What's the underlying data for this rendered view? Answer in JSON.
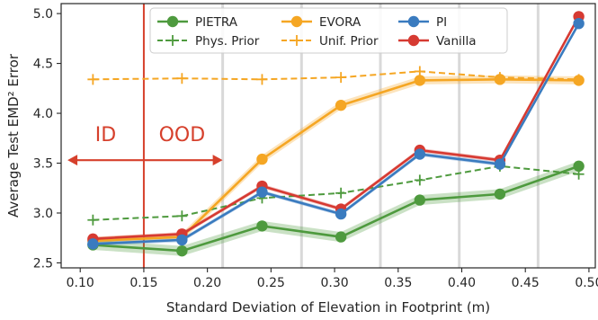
{
  "chart_data": {
    "type": "line",
    "title": "",
    "xlabel": "Standard Deviation of Elevation in Footprint (m)",
    "ylabel": "Average Test EMD² Error",
    "xlim": [
      0.085,
      0.505
    ],
    "ylim": [
      2.45,
      5.1
    ],
    "x_ticks": [
      0.1,
      0.15,
      0.2,
      0.25,
      0.3,
      0.35,
      0.4,
      0.45,
      0.5
    ],
    "x_tick_labels": [
      "0.10",
      "0.15",
      "0.20",
      "0.25",
      "0.30",
      "0.35",
      "0.40",
      "0.45",
      "0.50"
    ],
    "y_ticks": [
      2.5,
      3.0,
      3.5,
      4.0,
      4.5,
      5.0
    ],
    "y_tick_labels": [
      "2.5",
      "3.0",
      "3.5",
      "4.0",
      "4.5",
      "5.0"
    ],
    "grid": false,
    "gray_vlines": [
      0.212,
      0.274,
      0.336,
      0.398,
      0.46
    ],
    "id_ood_boundary": 0.15,
    "annotations": [
      {
        "text": "ID",
        "x": 0.12,
        "y": 3.72
      },
      {
        "text": "OOD",
        "x": 0.18,
        "y": 3.72
      }
    ],
    "arrow": {
      "x_from": 0.15,
      "x_to_left": 0.09,
      "x_to_right": 0.212,
      "y": 3.53
    },
    "legend_position": "top-center",
    "legend": [
      {
        "label": "PIETRA",
        "style": "solid-marker",
        "color": "#4e9a3e"
      },
      {
        "label": "EVORA",
        "style": "solid-marker",
        "color": "#f5a623"
      },
      {
        "label": "PI",
        "style": "solid-marker",
        "color": "#3a7bbf"
      },
      {
        "label": "Phys. Prior",
        "style": "dashed-plus",
        "color": "#4e9a3e"
      },
      {
        "label": "Unif. Prior",
        "style": "dashed-plus",
        "color": "#f5a623"
      },
      {
        "label": "Vanilla",
        "style": "solid-marker",
        "color": "#d63a32"
      }
    ],
    "series": [
      {
        "name": "Phys. Prior",
        "style": "dashed-plus",
        "color": "#4e9a3e",
        "x": [
          0.11,
          0.18,
          0.243,
          0.305,
          0.367,
          0.43,
          0.492
        ],
        "values": [
          2.93,
          2.97,
          3.15,
          3.2,
          3.33,
          3.47,
          3.39
        ]
      },
      {
        "name": "Unif. Prior",
        "style": "dashed-plus",
        "color": "#f5a623",
        "x": [
          0.11,
          0.18,
          0.243,
          0.305,
          0.367,
          0.43,
          0.492
        ],
        "values": [
          4.34,
          4.35,
          4.34,
          4.36,
          4.42,
          4.36,
          4.34
        ]
      },
      {
        "name": "EVORA",
        "style": "solid-marker",
        "color": "#f5a623",
        "band": 0.04,
        "x": [
          0.11,
          0.18,
          0.243,
          0.305,
          0.367,
          0.43,
          0.492
        ],
        "values": [
          2.72,
          2.76,
          3.54,
          4.08,
          4.33,
          4.34,
          4.33
        ]
      },
      {
        "name": "PIETRA",
        "style": "solid-marker",
        "color": "#4e9a3e",
        "band": 0.05,
        "x": [
          0.11,
          0.18,
          0.243,
          0.305,
          0.367,
          0.43,
          0.492
        ],
        "values": [
          2.68,
          2.62,
          2.87,
          2.76,
          3.13,
          3.19,
          3.47
        ]
      },
      {
        "name": "Vanilla",
        "style": "solid-marker",
        "color": "#d63a32",
        "band": 0.02,
        "x": [
          0.11,
          0.18,
          0.243,
          0.305,
          0.367,
          0.43,
          0.492
        ],
        "values": [
          2.74,
          2.79,
          3.27,
          3.04,
          3.63,
          3.53,
          4.97
        ]
      },
      {
        "name": "PI",
        "style": "solid-marker",
        "color": "#3a7bbf",
        "band": 0.02,
        "x": [
          0.11,
          0.18,
          0.243,
          0.305,
          0.367,
          0.43,
          0.492
        ],
        "values": [
          2.69,
          2.73,
          3.21,
          2.99,
          3.59,
          3.49,
          4.9
        ]
      }
    ]
  }
}
